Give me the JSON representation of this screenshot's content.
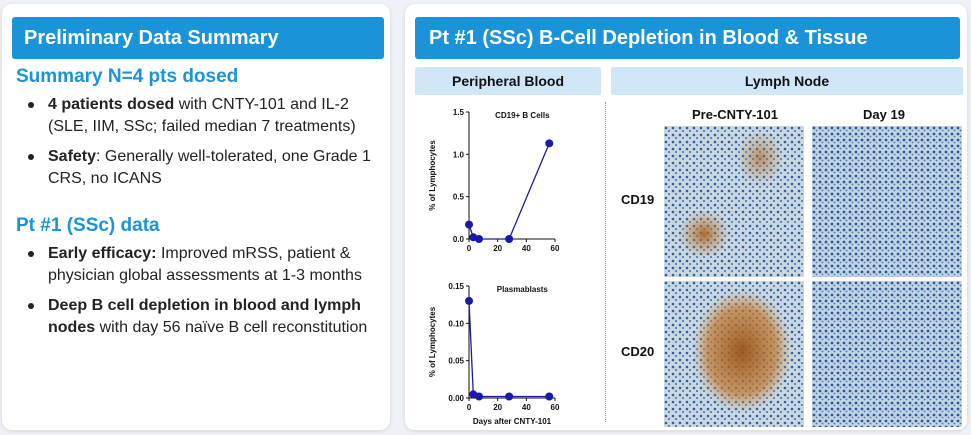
{
  "left": {
    "banner": "Preliminary Data Summary",
    "section1_title": "Summary N=4 pts dosed",
    "section1_bullets": [
      {
        "bold": "4 patients dosed",
        "text": " with CNTY-101 and IL-2 (SLE, IIM, SSc; failed median 7 treatments)"
      },
      {
        "bold": "Safety",
        "text": ": Generally well-tolerated, one Grade 1 CRS, no ICANS"
      }
    ],
    "section2_title": "Pt #1 (SSc) data",
    "section2_bullets": [
      {
        "bold": "Early efficacy:",
        "text": " Improved mRSS, patient & physician global assessments at 1-3 months"
      },
      {
        "bold": "Deep B cell depletion in blood and lymph nodes",
        "text": " with day 56 naïve B cell reconstitution"
      }
    ]
  },
  "right": {
    "banner": "Pt #1 (SSc) B-Cell Depletion in Blood & Tissue",
    "sub_blood": "Peripheral Blood",
    "sub_node": "Lymph Node",
    "col_pre": "Pre-CNTY-101",
    "col_day": "Day 19",
    "row_cd19": "CD19",
    "row_cd20": "CD20"
  },
  "chart_data": [
    {
      "type": "line",
      "title": "CD19+ B Cells",
      "ylabel": "% of Lymphocytes",
      "xlabel": "",
      "x": [
        0,
        3,
        7,
        28,
        56
      ],
      "y": [
        0.17,
        0.02,
        0.0,
        0.0,
        1.13
      ],
      "xlim": [
        0,
        60
      ],
      "ylim": [
        0,
        1.5
      ],
      "xticks": [
        0,
        20,
        40,
        60
      ],
      "yticks": [
        0,
        0.5,
        1.0,
        1.5
      ],
      "ytick_labels": [
        "0.0",
        "0.5",
        "1.0",
        "1.5"
      ],
      "color": "#1a1aa8"
    },
    {
      "type": "line",
      "title": "Plasmablasts",
      "ylabel": "% of Lymphocytes",
      "xlabel": "Days after CNTY-101",
      "x": [
        0,
        3,
        7,
        28,
        56
      ],
      "y": [
        0.13,
        0.005,
        0.002,
        0.002,
        0.002
      ],
      "xlim": [
        0,
        60
      ],
      "ylim": [
        0,
        0.15
      ],
      "xticks": [
        0,
        20,
        40,
        60
      ],
      "yticks": [
        0,
        0.05,
        0.1,
        0.15
      ],
      "ytick_labels": [
        "0.00",
        "0.05",
        "0.10",
        "0.15"
      ],
      "color": "#1a1aa8"
    }
  ]
}
